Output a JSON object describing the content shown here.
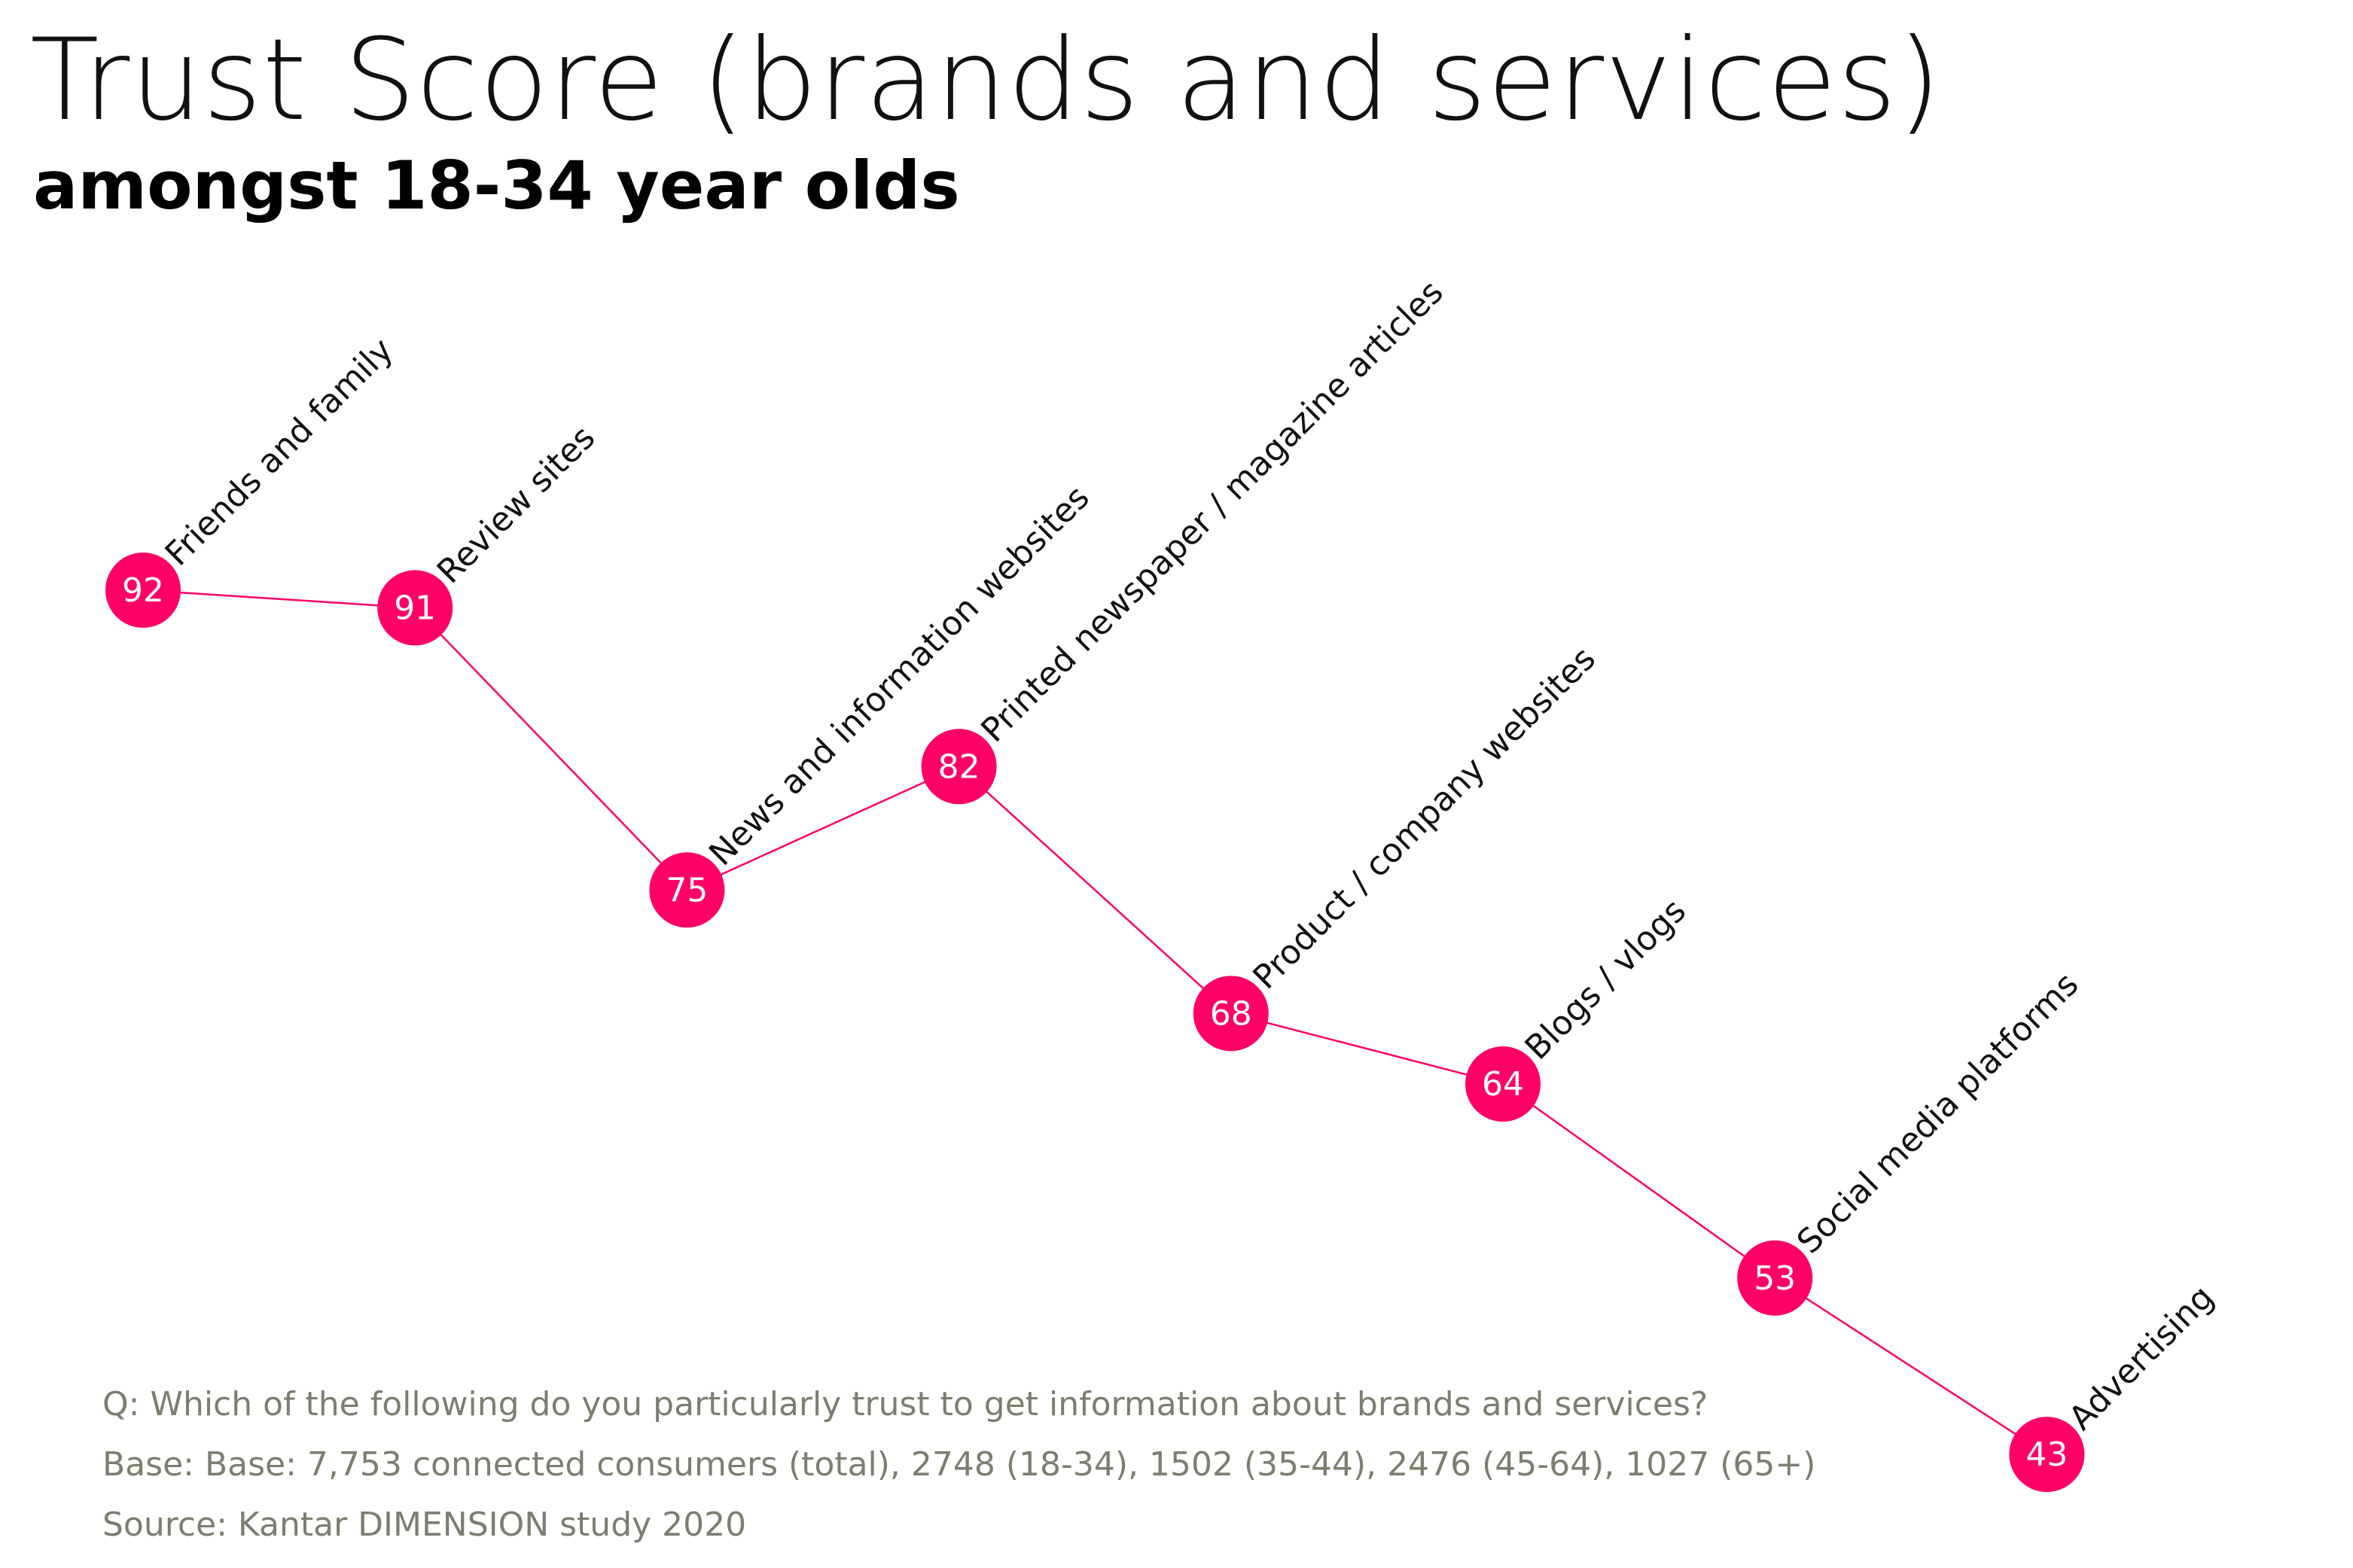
{
  "title": "Trust Score (brands and services)",
  "subtitle": "amongst 18-34 year olds",
  "chart_data": {
    "type": "line",
    "categories": [
      "Friends and family",
      "Review sites",
      "News and information websites",
      "Printed newspaper / magazine articles",
      "Product / company websites",
      "Blogs / vlogs",
      "Social media platforms",
      "Advertising"
    ],
    "values": [
      92,
      91,
      75,
      82,
      68,
      64,
      53,
      43
    ],
    "data_labels": true,
    "grid": false,
    "axes_visible": false,
    "color": "#ff0066"
  },
  "footnotes": {
    "question": "Q: Which of the following do you particularly trust to get information about brands and services?",
    "base": "Base: Base: 7,753 connected consumers (total), 2748 (18-34), 1502 (35-44), 2476 (45-64), 1027 (65+)",
    "source": "Source: Kantar DIMENSION study 2020"
  }
}
